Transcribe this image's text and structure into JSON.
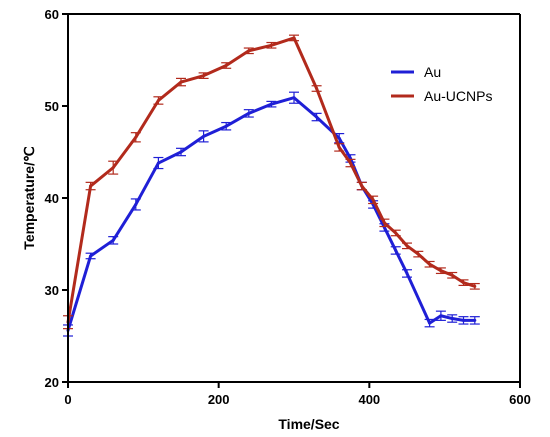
{
  "chart_data": {
    "type": "line",
    "title": "",
    "xlabel": "Time/Sec",
    "ylabel": "Temperature/℃",
    "xlim": [
      0,
      600
    ],
    "ylim": [
      20,
      60
    ],
    "x_ticks": [
      "0",
      "200",
      "400",
      "600"
    ],
    "y_ticks": [
      "20",
      "30",
      "40",
      "50",
      "60"
    ],
    "grid": false,
    "legend_position": "top-right",
    "series": [
      {
        "name": "Au",
        "color": "#1f1fd6",
        "x": [
          0,
          30,
          60,
          90,
          120,
          150,
          180,
          210,
          240,
          270,
          300,
          330,
          360,
          375,
          390,
          405,
          420,
          435,
          450,
          480,
          495,
          510,
          525,
          540
        ],
        "y": [
          25.6,
          33.7,
          35.4,
          39.3,
          43.8,
          45.0,
          46.7,
          47.8,
          49.2,
          50.2,
          50.9,
          48.8,
          46.5,
          44.3,
          41.3,
          39.3,
          36.8,
          34.3,
          31.8,
          26.4,
          27.2,
          26.9,
          26.7,
          26.7
        ],
        "err": [
          0.6,
          0.3,
          0.4,
          0.6,
          0.6,
          0.4,
          0.6,
          0.4,
          0.4,
          0.3,
          0.6,
          0.4,
          0.5,
          0.4,
          0.4,
          0.4,
          0.4,
          0.4,
          0.4,
          0.4,
          0.5,
          0.4,
          0.4,
          0.4
        ]
      },
      {
        "name": "Au-UCNPs",
        "color": "#b22a1c",
        "x": [
          0,
          30,
          60,
          90,
          120,
          150,
          180,
          210,
          240,
          270,
          300,
          330,
          360,
          375,
          390,
          405,
          420,
          435,
          450,
          465,
          480,
          495,
          510,
          525,
          540
        ],
        "y": [
          26.5,
          41.3,
          43.3,
          46.6,
          50.6,
          52.6,
          53.3,
          54.4,
          56.0,
          56.6,
          57.4,
          51.9,
          45.5,
          43.8,
          41.3,
          39.8,
          37.3,
          36.2,
          34.8,
          33.9,
          32.8,
          32.1,
          31.6,
          30.8,
          30.4
        ],
        "err": [
          0.7,
          0.4,
          0.7,
          0.5,
          0.4,
          0.4,
          0.3,
          0.3,
          0.3,
          0.3,
          0.3,
          0.3,
          0.4,
          0.4,
          0.4,
          0.4,
          0.4,
          0.3,
          0.3,
          0.3,
          0.3,
          0.3,
          0.3,
          0.3,
          0.3
        ]
      }
    ]
  }
}
